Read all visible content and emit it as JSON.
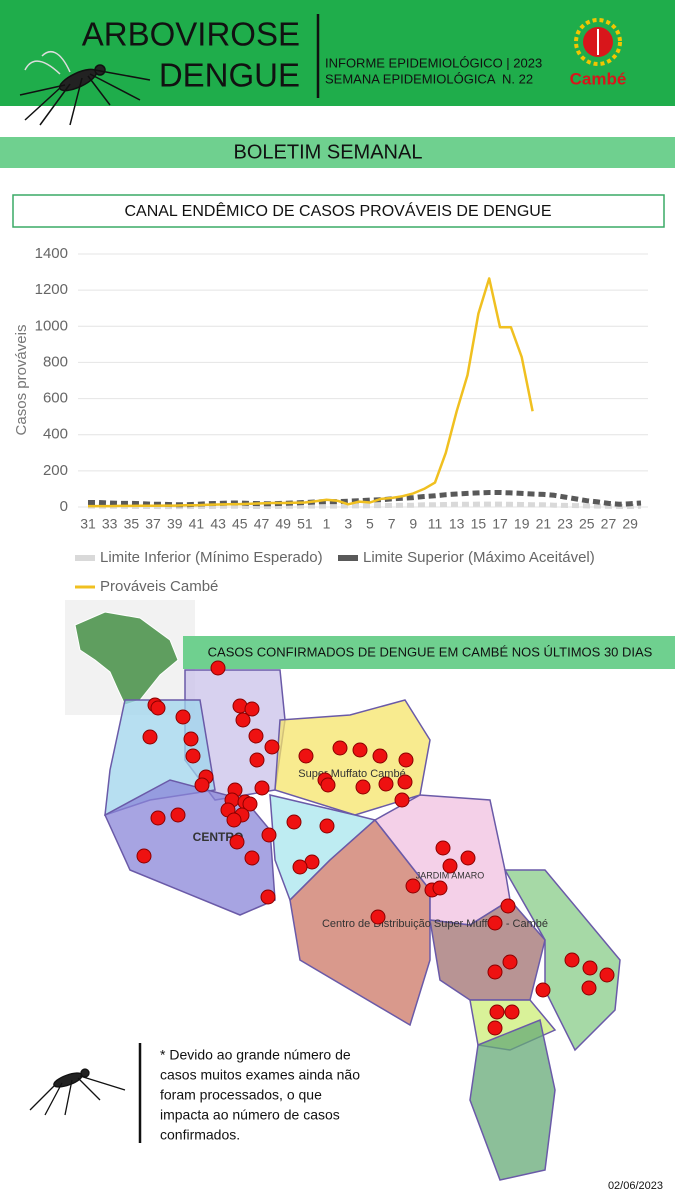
{
  "header": {
    "title_line1": "ARBOVIROSE",
    "title_line2": "DENGUE",
    "info_line1": "INFORME EPIDEMIOLÓGICO | 2023",
    "info_line2": "SEMANA EPIDEMIOLÓGICA  N. 22",
    "logo": "Cambé"
  },
  "banner": "BOLETIM SEMANAL",
  "chart_data": {
    "type": "line",
    "title": "CANAL ENDÊMICO DE CASOS PROVÁVEIS DE DENGUE",
    "y_label": "Casos prováveis",
    "categories": [
      "31",
      null,
      "33",
      null,
      "35",
      null,
      "37",
      null,
      "39",
      null,
      "41",
      null,
      "43",
      null,
      "45",
      null,
      "47",
      null,
      "49",
      null,
      "51",
      null,
      "1",
      null,
      "3",
      null,
      "5",
      null,
      "7",
      null,
      "9",
      null,
      "11",
      null,
      "13",
      null,
      "15",
      null,
      "17",
      null,
      "19",
      null,
      "21",
      null,
      "23",
      null,
      "25",
      null,
      "27",
      null,
      "29",
      null
    ],
    "series": [
      {
        "name": "Limite Inferior (Mínimo Esperado)",
        "color": "#d9d9d9",
        "style": "dashed",
        "values": [
          5,
          5,
          4,
          4,
          3,
          3,
          3,
          2,
          2,
          2,
          3,
          3,
          4,
          4,
          4,
          3,
          3,
          3,
          4,
          4,
          5,
          5,
          5,
          5,
          6,
          6,
          7,
          8,
          9,
          10,
          10,
          12,
          12,
          14,
          15,
          15,
          16,
          16,
          16,
          15,
          14,
          13,
          12,
          10,
          9,
          8,
          6,
          5,
          4,
          3,
          3,
          4
        ]
      },
      {
        "name": "Limite Superior (Máximo Aceitável)",
        "color": "#595959",
        "style": "dashed",
        "values": [
          25,
          25,
          22,
          20,
          20,
          18,
          15,
          15,
          12,
          12,
          15,
          18,
          20,
          22,
          22,
          20,
          18,
          18,
          20,
          22,
          25,
          28,
          30,
          30,
          32,
          35,
          38,
          40,
          45,
          48,
          52,
          58,
          62,
          68,
          72,
          75,
          78,
          80,
          80,
          78,
          75,
          72,
          70,
          65,
          55,
          45,
          35,
          28,
          20,
          15,
          18,
          22
        ]
      },
      {
        "name": "Prováveis Cambé",
        "color": "#f0c020",
        "style": "solid",
        "values": [
          5,
          5,
          5,
          6,
          6,
          7,
          7,
          8,
          8,
          10,
          10,
          12,
          14,
          15,
          16,
          18,
          20,
          22,
          22,
          24,
          25,
          32,
          40,
          35,
          15,
          30,
          25,
          45,
          50,
          60,
          75,
          100,
          135,
          300,
          530,
          730,
          1070,
          1265,
          995,
          995,
          830,
          530,
          null,
          null,
          null,
          null,
          null,
          null,
          null,
          null,
          null,
          null
        ]
      }
    ],
    "ylim": [
      0,
      1400
    ],
    "yticks": [
      0,
      200,
      400,
      600,
      800,
      1000,
      1200,
      1400
    ],
    "grid": true,
    "legend": "bottom"
  },
  "map": {
    "title": "CASOS CONFIRMADOS DE DENGUE EM CAMBÉ NOS ÚLTIMOS 30 DIAS",
    "labels": [
      "CENTRO",
      "Super Muffato Cambé",
      "Centro de Distribuição Super Muffato - Cambé",
      "JARDIM AMARO"
    ]
  },
  "note": [
    "* Devido ao grande número  de",
    "casos muitos exames ainda não",
    "foram processados, o que",
    "impacta ao número de casos",
    "confirmados."
  ],
  "date": "02/06/2023"
}
